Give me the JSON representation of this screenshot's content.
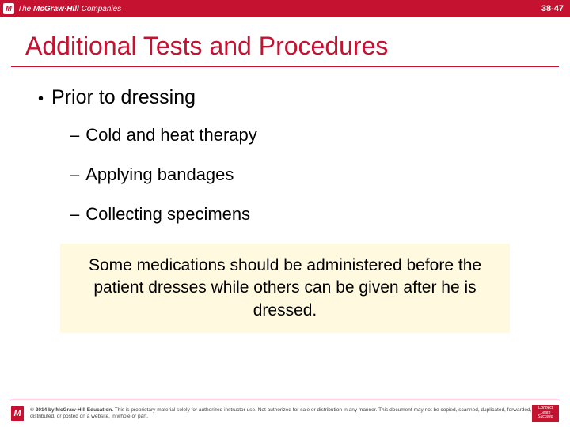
{
  "header": {
    "brand_prefix": "The",
    "brand_name": "McGraw·Hill",
    "brand_suffix": "Companies",
    "slide_number": "38-47"
  },
  "title": "Additional Tests and Procedures",
  "body": {
    "level1": "Prior to dressing",
    "items": [
      "Cold and heat therapy",
      "Applying bandages",
      "Collecting specimens"
    ],
    "callout": "Some medications should be administered before the patient dresses while others can be given after he is dressed."
  },
  "footer": {
    "copyright": "© 2014 by McGraw-Hill Education.",
    "legal": "This is proprietary material solely for authorized instructor use. Not authorized for sale or distribution in any manner. This document may not be copied, scanned, duplicated, forwarded, distributed, or posted on a website, in whole or part.",
    "connect1": "Connect",
    "connect2": "Learn",
    "connect3": "Succeed"
  },
  "colors": {
    "brand_red": "#c41230",
    "callout_bg": "#fff9e0",
    "text": "#000000",
    "footer_text": "#444444"
  }
}
